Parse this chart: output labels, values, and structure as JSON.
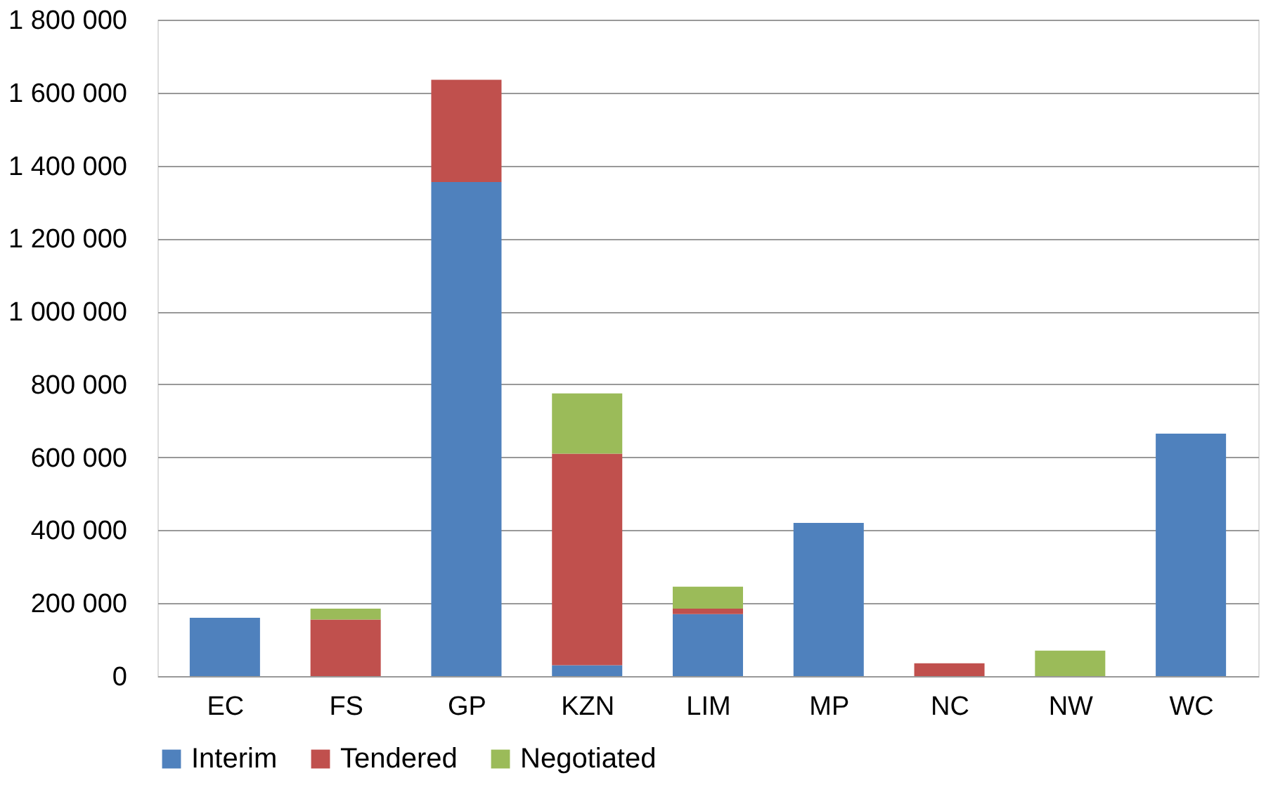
{
  "chart_data": {
    "type": "bar",
    "stacked": true,
    "categories": [
      "EC",
      "FS",
      "GP",
      "KZN",
      "LIM",
      "MP",
      "NC",
      "NW",
      "WC"
    ],
    "series": [
      {
        "name": "Interim",
        "color": "#4f81bd",
        "values": [
          160000,
          0,
          1355000,
          30000,
          170000,
          420000,
          0,
          0,
          665000
        ]
      },
      {
        "name": "Tendered",
        "color": "#c0504d",
        "values": [
          0,
          155000,
          280000,
          580000,
          15000,
          0,
          35000,
          0,
          0
        ]
      },
      {
        "name": "Negotiated",
        "color": "#9bbb59",
        "values": [
          0,
          30000,
          0,
          165000,
          60000,
          0,
          0,
          70000,
          0
        ]
      }
    ],
    "ylim": [
      0,
      1800000
    ],
    "yticks": [
      {
        "value": 0,
        "label": "0"
      },
      {
        "value": 200000,
        "label": "200 000"
      },
      {
        "value": 400000,
        "label": "400 000"
      },
      {
        "value": 600000,
        "label": "600 000"
      },
      {
        "value": 800000,
        "label": "800 000"
      },
      {
        "value": 1000000,
        "label": "1 000 000"
      },
      {
        "value": 1200000,
        "label": "1 200 000"
      },
      {
        "value": 1400000,
        "label": "1 400 000"
      },
      {
        "value": 1600000,
        "label": "1 600 000"
      },
      {
        "value": 1800000,
        "label": "1 800 000"
      }
    ],
    "grid": "y",
    "legend": "bottom"
  }
}
